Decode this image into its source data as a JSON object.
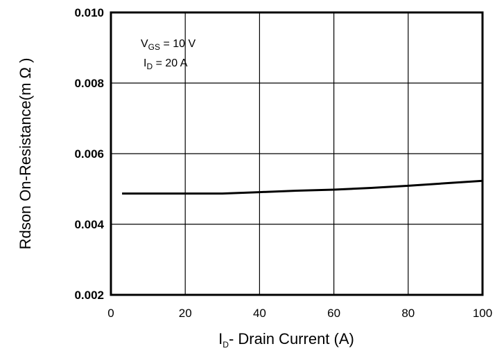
{
  "chart_data": {
    "type": "line",
    "title": "",
    "xlabel": {
      "main": "I",
      "sub": "D",
      "rest": "- Drain Current (A)"
    },
    "ylabel": "Rdson On-Resistance(m Ω )",
    "xlim": [
      0,
      100
    ],
    "ylim": [
      0.002,
      0.01
    ],
    "x_ticks": [
      0,
      20,
      40,
      60,
      80,
      100
    ],
    "x_tick_labels": [
      "0",
      "20",
      "40",
      "60",
      "80",
      "100"
    ],
    "y_ticks": [
      0.002,
      0.004,
      0.006,
      0.008,
      0.01
    ],
    "y_tick_labels": [
      "0.002",
      "0.004",
      "0.006",
      "0.008",
      "0.010"
    ],
    "grid": true,
    "annotations": {
      "line1": {
        "main": "V",
        "sub": "GS",
        "rest": " = 10 V"
      },
      "line2": {
        "main": "I",
        "sub": "D",
        "rest": " = 20 A"
      }
    },
    "series": [
      {
        "name": "Rdson",
        "x": [
          3,
          10,
          20,
          30,
          40,
          50,
          60,
          70,
          80,
          90,
          100
        ],
        "y": [
          0.00487,
          0.00487,
          0.00487,
          0.00487,
          0.00491,
          0.00495,
          0.00498,
          0.00503,
          0.00509,
          0.00516,
          0.00523
        ]
      }
    ]
  }
}
